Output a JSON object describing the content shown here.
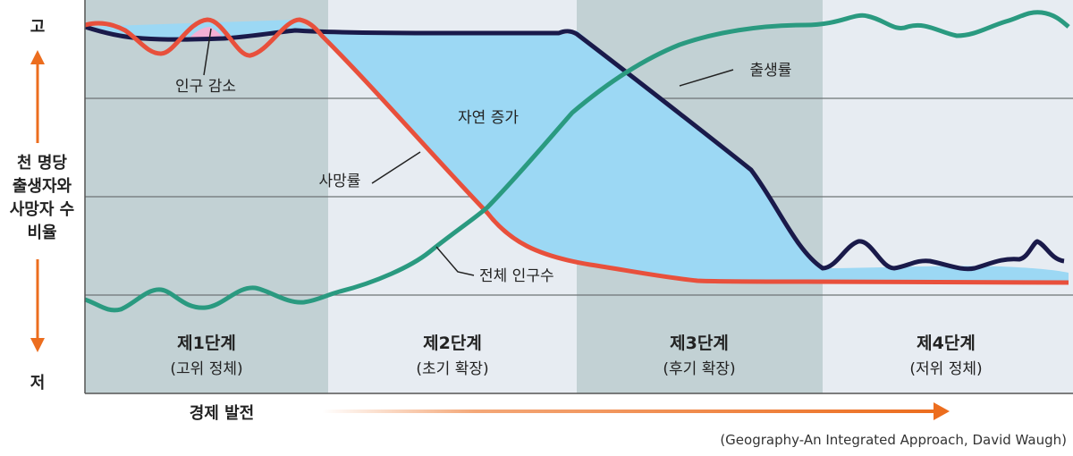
{
  "axis": {
    "top": "고",
    "bottom": "저",
    "ylabel_lines": [
      "천 명당",
      "출생자와",
      "사망자 수",
      "비율"
    ],
    "xlabel": "경제 발전"
  },
  "stages": [
    {
      "title": "제1단계",
      "subtitle": "(고위 정체)",
      "color": "#c2d1d4"
    },
    {
      "title": "제2단계",
      "subtitle": "(초기 확장)",
      "color": "#e7ecf2"
    },
    {
      "title": "제3단계",
      "subtitle": "(후기 확장)",
      "color": "#c2d1d4"
    },
    {
      "title": "제4단계",
      "subtitle": "(저위 정체)",
      "color": "#e7ecf2"
    }
  ],
  "labels": {
    "decrease": "인구 감소",
    "natural_increase": "자연 증가",
    "death_rate": "사망률",
    "birth_rate": "출생률",
    "total_population": "전체 인구수"
  },
  "source": "(Geography-An Integrated Approach, David Waugh)",
  "colors": {
    "birth": "#1a1a4a",
    "death": "#e8503c",
    "population": "#2a9a80",
    "natural_increase": "#9cd8f4",
    "decrease": "#f4b0d4",
    "arrow": "#ec6d1e"
  }
}
